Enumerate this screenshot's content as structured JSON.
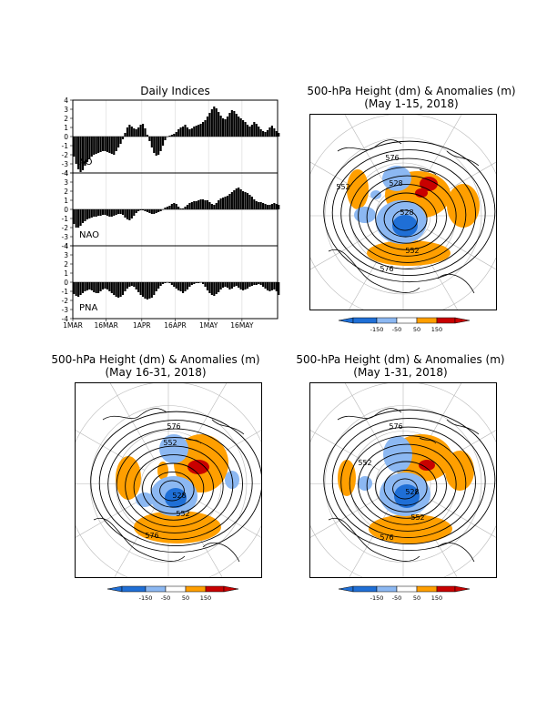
{
  "indices_panel": {
    "title": "Daily Indices",
    "y_ticks": [
      "4",
      "3",
      "2",
      "1",
      "0",
      "-1",
      "-2",
      "-3",
      "-4"
    ],
    "x_ticks": [
      "1MAR",
      "16MAR",
      "1APR",
      "16APR",
      "1MAY",
      "16MAY"
    ],
    "index_labels": [
      "AO",
      "NAO",
      "PNA"
    ]
  },
  "chart_data": [
    {
      "type": "bar",
      "name": "AO",
      "ylim": [
        -4,
        4
      ],
      "x_start": "1MAR",
      "values": [
        -2.2,
        -3.0,
        -3.6,
        -3.9,
        -3.7,
        -3.2,
        -2.8,
        -2.5,
        -2.2,
        -2.0,
        -1.9,
        -1.8,
        -1.7,
        -1.6,
        -1.6,
        -1.7,
        -1.8,
        -1.9,
        -2.0,
        -1.6,
        -1.2,
        -0.8,
        -0.3,
        0.4,
        1.0,
        1.3,
        1.1,
        0.9,
        0.8,
        1.0,
        1.3,
        1.4,
        0.9,
        0.2,
        -0.5,
        -1.2,
        -1.8,
        -2.1,
        -2.0,
        -1.6,
        -1.0,
        -0.4,
        0.0,
        0.1,
        0.2,
        0.3,
        0.5,
        0.8,
        1.0,
        1.1,
        1.3,
        1.0,
        0.8,
        0.9,
        1.1,
        1.2,
        1.3,
        1.4,
        1.6,
        1.8,
        2.2,
        2.6,
        3.0,
        3.3,
        3.1,
        2.7,
        2.3,
        2.0,
        1.9,
        2.2,
        2.6,
        2.9,
        2.8,
        2.5,
        2.2,
        2.0,
        1.8,
        1.6,
        1.3,
        1.1,
        1.3,
        1.6,
        1.4,
        1.1,
        0.8,
        0.6,
        0.5,
        0.7,
        1.0,
        1.2,
        0.9,
        0.6,
        0.4
      ]
    },
    {
      "type": "bar",
      "name": "NAO",
      "ylim": [
        -4,
        4
      ],
      "x_start": "1MAR",
      "values": [
        -1.6,
        -2.0,
        -2.0,
        -1.8,
        -1.5,
        -1.3,
        -1.1,
        -1.0,
        -0.9,
        -0.8,
        -0.8,
        -0.7,
        -0.7,
        -0.6,
        -0.6,
        -0.7,
        -0.8,
        -0.8,
        -0.7,
        -0.6,
        -0.5,
        -0.5,
        -0.6,
        -0.9,
        -1.1,
        -1.2,
        -1.0,
        -0.7,
        -0.4,
        -0.2,
        -0.1,
        -0.1,
        -0.2,
        -0.3,
        -0.4,
        -0.5,
        -0.5,
        -0.4,
        -0.3,
        -0.2,
        0.0,
        0.2,
        0.3,
        0.4,
        0.6,
        0.7,
        0.6,
        0.3,
        0.1,
        0.1,
        0.3,
        0.5,
        0.7,
        0.8,
        0.9,
        0.9,
        1.0,
        1.1,
        1.1,
        1.0,
        1.0,
        0.8,
        0.6,
        0.5,
        0.7,
        1.0,
        1.2,
        1.3,
        1.4,
        1.5,
        1.7,
        1.9,
        2.1,
        2.3,
        2.4,
        2.2,
        2.0,
        1.9,
        1.8,
        1.6,
        1.4,
        1.1,
        0.9,
        0.8,
        0.8,
        0.7,
        0.6,
        0.5,
        0.5,
        0.6,
        0.7,
        0.6,
        0.5
      ]
    },
    {
      "type": "bar",
      "name": "PNA",
      "ylim": [
        -4,
        4
      ],
      "x_start": "1MAR",
      "values": [
        -1.3,
        -1.5,
        -1.6,
        -1.4,
        -1.2,
        -1.0,
        -0.9,
        -0.8,
        -0.9,
        -1.1,
        -1.2,
        -1.2,
        -1.0,
        -0.8,
        -0.7,
        -0.8,
        -1.0,
        -1.2,
        -1.4,
        -1.6,
        -1.7,
        -1.6,
        -1.4,
        -1.0,
        -0.7,
        -0.5,
        -0.4,
        -0.5,
        -0.8,
        -1.1,
        -1.4,
        -1.6,
        -1.8,
        -1.9,
        -1.8,
        -1.7,
        -1.4,
        -1.0,
        -0.7,
        -0.4,
        -0.2,
        -0.1,
        0.0,
        -0.1,
        -0.3,
        -0.5,
        -0.7,
        -0.9,
        -1.0,
        -1.2,
        -1.0,
        -0.8,
        -0.5,
        -0.3,
        -0.2,
        -0.1,
        -0.1,
        0.0,
        -0.2,
        -0.5,
        -0.9,
        -1.2,
        -1.4,
        -1.5,
        -1.3,
        -1.1,
        -0.8,
        -0.6,
        -0.5,
        -0.6,
        -0.8,
        -0.7,
        -0.5,
        -0.4,
        -0.6,
        -0.8,
        -0.9,
        -0.8,
        -0.7,
        -0.5,
        -0.4,
        -0.3,
        -0.3,
        -0.2,
        -0.3,
        -0.5,
        -0.7,
        -0.9,
        -1.0,
        -0.9,
        -0.8,
        -1.0,
        -1.4
      ]
    }
  ],
  "maps": [
    {
      "title": "500-hPa Height (dm) & Anomalies (m)",
      "subtitle": "(May 1-15, 2018)",
      "contour_labels": [
        "576",
        "552",
        "528",
        "528",
        "552",
        "576"
      ]
    },
    {
      "title": "500-hPa Height (dm) & Anomalies (m)",
      "subtitle": "(May 16-31, 2018)",
      "contour_labels": [
        "576",
        "552",
        "528",
        "552",
        "576"
      ]
    },
    {
      "title": "500-hPa Height (dm) & Anomalies (m)",
      "subtitle": "(May 1-31, 2018)",
      "contour_labels": [
        "576",
        "552",
        "528",
        "552",
        "576"
      ]
    }
  ],
  "colorbar": {
    "labels": [
      "-150",
      "-50",
      "50",
      "150"
    ],
    "colors": {
      "strong_neg": "#1f6fd6",
      "neg": "#8cb8f2",
      "neutral": "#ffffff",
      "pos": "#ff9f00",
      "strong_pos": "#c80000"
    }
  }
}
